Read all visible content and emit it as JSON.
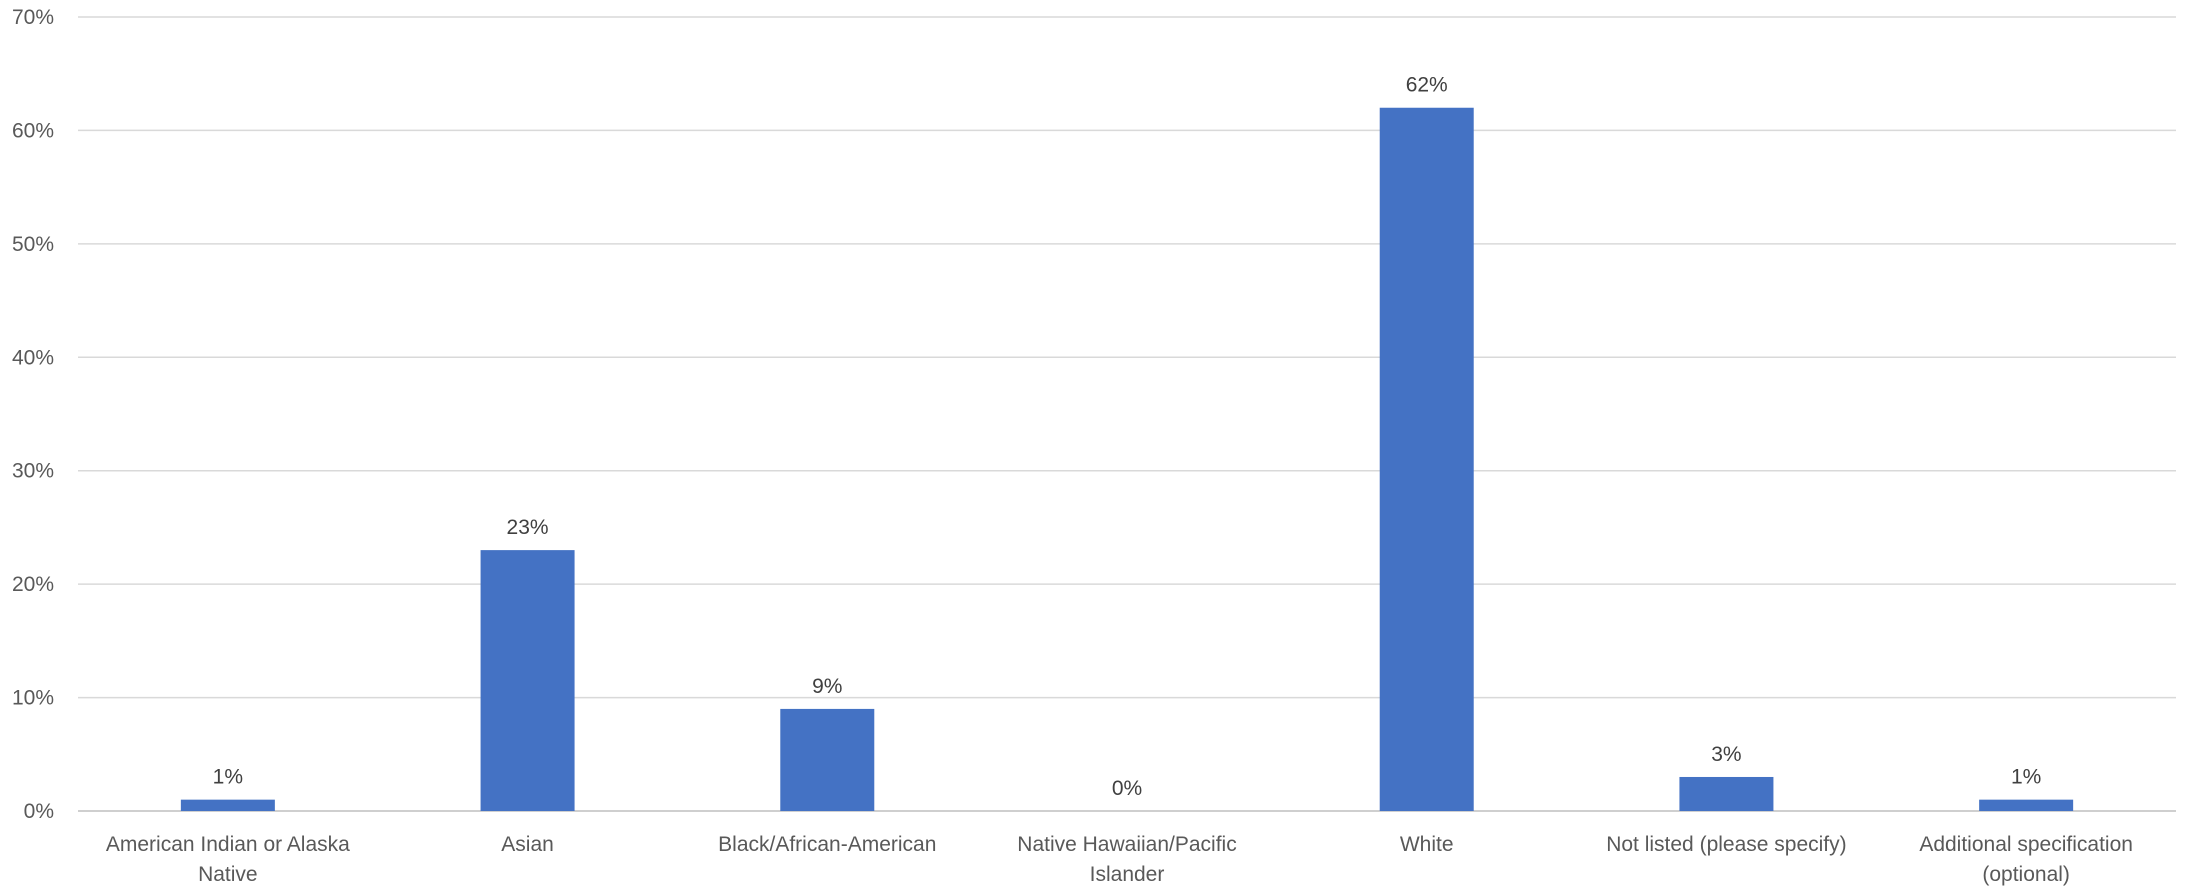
{
  "chart_data": {
    "type": "bar",
    "title": "",
    "xlabel": "",
    "ylabel": "",
    "categories": [
      [
        "American Indian or Alaska",
        "Native"
      ],
      [
        "Asian"
      ],
      [
        "Black/African-American"
      ],
      [
        "Native Hawaiian/Pacific",
        "Islander"
      ],
      [
        "White"
      ],
      [
        "Not listed (please specify)"
      ],
      [
        "Additional specification",
        "(optional)"
      ]
    ],
    "values": [
      1,
      23,
      9,
      0,
      62,
      3,
      1
    ],
    "data_labels": [
      "1%",
      "23%",
      "9%",
      "0%",
      "62%",
      "3%",
      "1%"
    ],
    "ylim": [
      0,
      70
    ],
    "yticks": [
      0,
      10,
      20,
      30,
      40,
      50,
      60,
      70
    ],
    "ytick_labels": [
      "0%",
      "10%",
      "20%",
      "30%",
      "40%",
      "50%",
      "60%",
      "70%"
    ],
    "grid": true,
    "legend": "none",
    "bar_color": "#4472C4"
  }
}
